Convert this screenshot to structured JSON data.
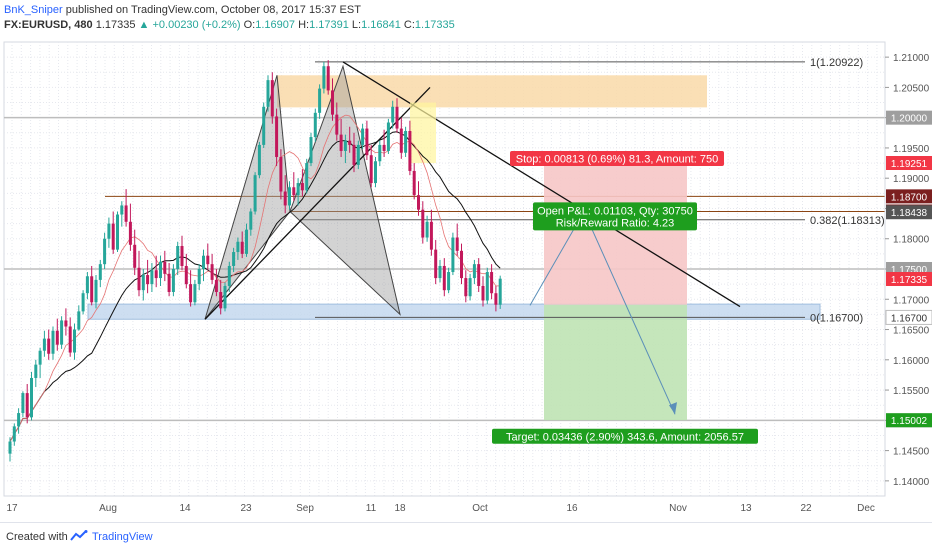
{
  "header": {
    "author": "BnK_Sniper",
    "published": "published on TradingView.com, October 08, 2017 15:37 EST",
    "symbol": "FX:EURUSD, 480",
    "last": "1.17335",
    "change": "+0.00230 (+0.2%)",
    "open_label": "O:",
    "open": "1.16907",
    "high_label": "H:",
    "high": "1.17391",
    "low_label": "L:",
    "low": "1.16841",
    "close_label": "C:",
    "close": "1.17335",
    "up_arrow_icon": "triangle-up-icon"
  },
  "footer": {
    "created_with": "Created with",
    "brand": "TradingView",
    "logo_icon": "tradingview-logo-icon"
  },
  "colors": {
    "bull": "#26a69a",
    "bear": "#c2185b",
    "stop_zone": "#f6c6c6",
    "target_zone": "#bfe3b4",
    "supply_zone": "#f9d9a8",
    "demand_zone": "#c5d9ef",
    "stop_label": "#f23645",
    "target_label": "#1e9e1e"
  },
  "chart_data": {
    "type": "candlestick",
    "symbol": "EURUSD",
    "timeframe": "480",
    "ylim": [
      1.1375,
      1.2125
    ],
    "y_ticks": [
      "1.21000",
      "1.20500",
      "1.20000",
      "1.19500",
      "1.19000",
      "1.18500",
      "1.18000",
      "1.17500",
      "1.17000",
      "1.16500",
      "1.16000",
      "1.15500",
      "1.15000",
      "1.14500",
      "1.14000"
    ],
    "x_ticks": [
      "17",
      "Aug",
      "14",
      "23",
      "Sep",
      "11",
      "18",
      "Oct",
      "16",
      "Nov",
      "13",
      "22",
      "Dec"
    ],
    "price_badges": [
      {
        "value": "1.20000",
        "color": "#9e9e9e"
      },
      {
        "value": "1.19251",
        "color": "#f23645"
      },
      {
        "value": "1.18700",
        "color": "#7b1f1f"
      },
      {
        "value": "1.18450",
        "color": "#7b1f1f"
      },
      {
        "value": "1.18438",
        "color": "#555555"
      },
      {
        "value": "1.17500",
        "color": "#9e9e9e"
      },
      {
        "value": "1.17335",
        "color": "#f23645"
      },
      {
        "value": "1.16700",
        "color": "#ffffff"
      },
      {
        "value": "1.15000",
        "color": "#9e9e9e"
      },
      {
        "value": "1.15002",
        "color": "#1e9e1e"
      }
    ],
    "fib_labels": [
      {
        "text": "1(1.20922)",
        "price": 1.20922
      },
      {
        "text": "0.382(1.18313)",
        "price": 1.18313
      },
      {
        "text": "0(1.16700)",
        "price": 1.167
      }
    ],
    "position": {
      "stop_text": "Stop: 0.00813 (0.69%) 81.3, Amount: 750",
      "pnl_text": "Open P&L: 0.01103, Qty: 30750",
      "rr_text": "Risk/Reward Ratio: 4.23",
      "target_text": "Target: 0.03436 (2.90%) 343.6, Amount: 2056.57",
      "entry": 1.16909,
      "stop": 1.19251,
      "target": 1.15002
    },
    "zones": [
      {
        "name": "supply",
        "top": 1.207,
        "bottom": 1.2017
      },
      {
        "name": "demand",
        "top": 1.1692,
        "bottom": 1.1667
      }
    ],
    "candles": [
      [
        1.1445,
        1.1472,
        1.1432,
        1.1465
      ],
      [
        1.1465,
        1.1495,
        1.1458,
        1.149
      ],
      [
        1.149,
        1.152,
        1.1478,
        1.1512
      ],
      [
        1.1512,
        1.1548,
        1.1505,
        1.1545
      ],
      [
        1.1545,
        1.156,
        1.1495,
        1.1505
      ],
      [
        1.1505,
        1.158,
        1.15,
        1.157
      ],
      [
        1.157,
        1.16,
        1.1555,
        1.1592
      ],
      [
        1.1592,
        1.162,
        1.157,
        1.1615
      ],
      [
        1.1615,
        1.1648,
        1.1605,
        1.1635
      ],
      [
        1.1635,
        1.165,
        1.16,
        1.161
      ],
      [
        1.161,
        1.1655,
        1.16,
        1.1648
      ],
      [
        1.1648,
        1.1668,
        1.1615,
        1.1625
      ],
      [
        1.1625,
        1.1672,
        1.1618,
        1.1665
      ],
      [
        1.1665,
        1.1685,
        1.164,
        1.1655
      ],
      [
        1.1655,
        1.167,
        1.1605,
        1.1612
      ],
      [
        1.1612,
        1.166,
        1.16,
        1.165
      ],
      [
        1.165,
        1.169,
        1.1648,
        1.168
      ],
      [
        1.168,
        1.1715,
        1.1675,
        1.171
      ],
      [
        1.171,
        1.1745,
        1.17,
        1.1738
      ],
      [
        1.1738,
        1.1755,
        1.169,
        1.1695
      ],
      [
        1.1695,
        1.174,
        1.1685,
        1.1732
      ],
      [
        1.1732,
        1.1765,
        1.172,
        1.1758
      ],
      [
        1.1758,
        1.181,
        1.175,
        1.18
      ],
      [
        1.18,
        1.1835,
        1.1785,
        1.1825
      ],
      [
        1.1825,
        1.1845,
        1.1775,
        1.1782
      ],
      [
        1.1782,
        1.1845,
        1.1778,
        1.184
      ],
      [
        1.184,
        1.1862,
        1.182,
        1.1855
      ],
      [
        1.1855,
        1.1882,
        1.182,
        1.1828
      ],
      [
        1.1828,
        1.1858,
        1.178,
        1.179
      ],
      [
        1.179,
        1.1815,
        1.174,
        1.1752
      ],
      [
        1.1752,
        1.178,
        1.1705,
        1.1715
      ],
      [
        1.1715,
        1.175,
        1.1698,
        1.174
      ],
      [
        1.174,
        1.1765,
        1.171,
        1.1725
      ],
      [
        1.1725,
        1.176,
        1.1712,
        1.1748
      ],
      [
        1.1748,
        1.1772,
        1.172,
        1.1735
      ],
      [
        1.1735,
        1.1772,
        1.1722,
        1.1762
      ],
      [
        1.1762,
        1.178,
        1.173,
        1.1742
      ],
      [
        1.1742,
        1.176,
        1.1705,
        1.1712
      ],
      [
        1.1712,
        1.1758,
        1.1705,
        1.175
      ],
      [
        1.175,
        1.1795,
        1.174,
        1.1788
      ],
      [
        1.1788,
        1.1805,
        1.1748,
        1.1755
      ],
      [
        1.1755,
        1.1775,
        1.1718,
        1.1725
      ],
      [
        1.1725,
        1.1748,
        1.1688,
        1.1695
      ],
      [
        1.1695,
        1.1732,
        1.169,
        1.1725
      ],
      [
        1.1725,
        1.1758,
        1.1715,
        1.175
      ],
      [
        1.175,
        1.1782,
        1.173,
        1.1772
      ],
      [
        1.1772,
        1.1792,
        1.1748,
        1.1758
      ],
      [
        1.1758,
        1.1775,
        1.1725,
        1.1732
      ],
      [
        1.1732,
        1.175,
        1.1705,
        1.1712
      ],
      [
        1.1712,
        1.1732,
        1.1675,
        1.1685
      ],
      [
        1.1685,
        1.1728,
        1.168,
        1.1722
      ],
      [
        1.1722,
        1.1762,
        1.1712,
        1.1755
      ],
      [
        1.1755,
        1.1785,
        1.1745,
        1.1778
      ],
      [
        1.1778,
        1.1802,
        1.1765,
        1.1795
      ],
      [
        1.1795,
        1.1812,
        1.1768,
        1.1775
      ],
      [
        1.1775,
        1.1825,
        1.177,
        1.1815
      ],
      [
        1.1815,
        1.185,
        1.1805,
        1.1845
      ],
      [
        1.1845,
        1.191,
        1.184,
        1.1905
      ],
      [
        1.1905,
        1.196,
        1.19,
        1.1955
      ],
      [
        1.1955,
        1.2025,
        1.195,
        1.2018
      ],
      [
        1.2018,
        1.207,
        1.201,
        1.2062
      ],
      [
        1.2062,
        1.2075,
        1.199,
        1.2002
      ],
      [
        1.2002,
        1.2015,
        1.192,
        1.1935
      ],
      [
        1.1935,
        1.1948,
        1.1865,
        1.1878
      ],
      [
        1.1878,
        1.1905,
        1.1842,
        1.1855
      ],
      [
        1.1855,
        1.1895,
        1.1848,
        1.1885
      ],
      [
        1.1885,
        1.191,
        1.1862,
        1.1872
      ],
      [
        1.1872,
        1.19,
        1.1855,
        1.1892
      ],
      [
        1.1892,
        1.1915,
        1.187,
        1.188
      ],
      [
        1.188,
        1.1932,
        1.1875,
        1.1925
      ],
      [
        1.1925,
        1.1975,
        1.192,
        1.1968
      ],
      [
        1.1968,
        1.2015,
        1.196,
        1.2008
      ],
      [
        1.2008,
        1.2055,
        1.1998,
        1.2048
      ],
      [
        1.2048,
        1.2092,
        1.204,
        1.2085
      ],
      [
        1.2085,
        1.2095,
        1.2038,
        1.2045
      ],
      [
        1.2045,
        1.2065,
        1.1995,
        1.2005
      ],
      [
        1.2005,
        1.2025,
        1.1962,
        1.1972
      ],
      [
        1.1972,
        1.1998,
        1.1935,
        1.1945
      ],
      [
        1.1945,
        1.1972,
        1.1925,
        1.1962
      ],
      [
        1.1962,
        1.1985,
        1.1942,
        1.1955
      ],
      [
        1.1955,
        1.1975,
        1.191,
        1.1922
      ],
      [
        1.1922,
        1.1962,
        1.1915,
        1.1955
      ],
      [
        1.1955,
        1.199,
        1.1948,
        1.1982
      ],
      [
        1.1982,
        1.1995,
        1.193,
        1.1938
      ],
      [
        1.1938,
        1.1955,
        1.1885,
        1.1892
      ],
      [
        1.1892,
        1.1935,
        1.1885,
        1.1928
      ],
      [
        1.1928,
        1.1962,
        1.192,
        1.1955
      ],
      [
        1.1955,
        1.198,
        1.1935,
        1.1945
      ],
      [
        1.1945,
        1.1998,
        1.194,
        1.1992
      ],
      [
        1.1992,
        1.2028,
        1.1982,
        1.2018
      ],
      [
        1.2018,
        1.2032,
        1.1975,
        1.1982
      ],
      [
        1.1982,
        1.2,
        1.1932,
        1.1942
      ],
      [
        1.1942,
        1.1985,
        1.1935,
        1.1978
      ],
      [
        1.1978,
        1.1995,
        1.1905,
        1.1912
      ],
      [
        1.1912,
        1.1925,
        1.1865,
        1.1872
      ],
      [
        1.1872,
        1.1895,
        1.1838,
        1.1848
      ],
      [
        1.1848,
        1.1862,
        1.1792,
        1.1802
      ],
      [
        1.1802,
        1.1838,
        1.1795,
        1.1828
      ],
      [
        1.1828,
        1.1848,
        1.1772,
        1.1782
      ],
      [
        1.1782,
        1.1798,
        1.1725,
        1.1735
      ],
      [
        1.1735,
        1.1765,
        1.1728,
        1.1755
      ],
      [
        1.1755,
        1.1768,
        1.1705,
        1.1715
      ],
      [
        1.1715,
        1.1752,
        1.171,
        1.1745
      ],
      [
        1.1745,
        1.181,
        1.174,
        1.1802
      ],
      [
        1.1802,
        1.1825,
        1.1772,
        1.178
      ],
      [
        1.178,
        1.1792,
        1.1725,
        1.1735
      ],
      [
        1.1735,
        1.1748,
        1.1695,
        1.1705
      ],
      [
        1.1705,
        1.1742,
        1.1698,
        1.1735
      ],
      [
        1.1735,
        1.1765,
        1.1725,
        1.1758
      ],
      [
        1.1758,
        1.1768,
        1.1712,
        1.1722
      ],
      [
        1.1722,
        1.1738,
        1.1688,
        1.1698
      ],
      [
        1.1698,
        1.1752,
        1.1692,
        1.1745
      ],
      [
        1.1745,
        1.1758,
        1.17,
        1.171
      ],
      [
        1.171,
        1.1722,
        1.168,
        1.1691
      ],
      [
        1.1691,
        1.1739,
        1.1684,
        1.1734
      ]
    ]
  }
}
